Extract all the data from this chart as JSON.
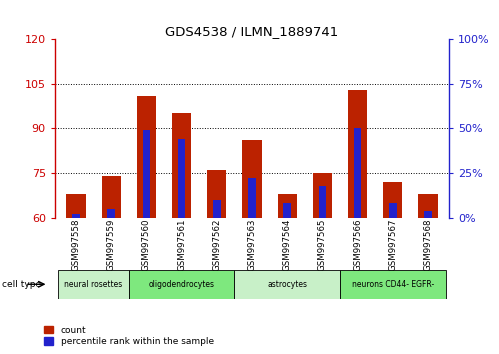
{
  "title": "GDS4538 / ILMN_1889741",
  "samples": [
    "GSM997558",
    "GSM997559",
    "GSM997560",
    "GSM997561",
    "GSM997562",
    "GSM997563",
    "GSM997564",
    "GSM997565",
    "GSM997566",
    "GSM997567",
    "GSM997568"
  ],
  "count_values": [
    68,
    74,
    101,
    95,
    76,
    86,
    68,
    75,
    103,
    72,
    68
  ],
  "percentile_values": [
    2,
    5,
    49,
    44,
    10,
    22,
    8,
    18,
    50,
    8,
    4
  ],
  "cell_types": [
    {
      "label": "neural rosettes",
      "start": 0,
      "end": 2,
      "color": "#c8f0c8"
    },
    {
      "label": "oligodendrocytes",
      "start": 2,
      "end": 5,
      "color": "#7ee87e"
    },
    {
      "label": "astrocytes",
      "start": 5,
      "end": 8,
      "color": "#c8f0c8"
    },
    {
      "label": "neurons CD44- EGFR-",
      "start": 8,
      "end": 11,
      "color": "#7ee87e"
    }
  ],
  "ylim_left": [
    60,
    120
  ],
  "ylim_right": [
    0,
    100
  ],
  "yticks_left": [
    60,
    75,
    90,
    105,
    120
  ],
  "yticks_right": [
    0,
    25,
    50,
    75,
    100
  ],
  "bar_color": "#bb2200",
  "percentile_color": "#2222cc",
  "left_axis_color": "#cc0000",
  "right_axis_color": "#2222cc",
  "bar_width": 0.55,
  "background_color": "#ffffff"
}
